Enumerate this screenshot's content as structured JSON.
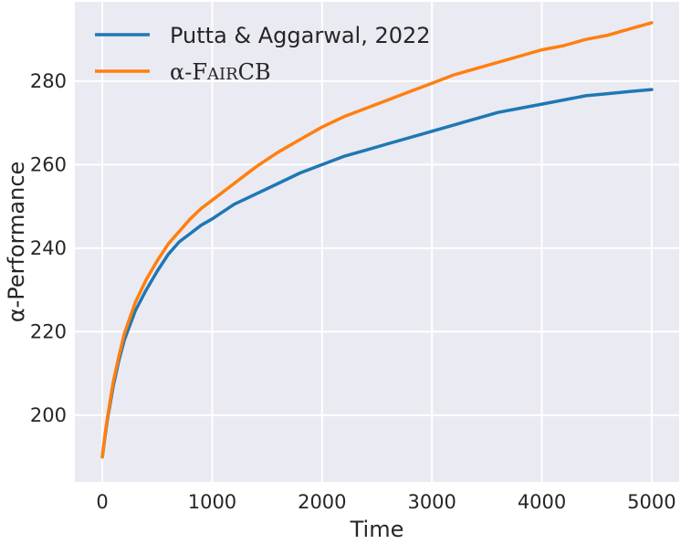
{
  "chart_data": {
    "type": "line",
    "xlabel": "Time",
    "ylabel": "α-Performance",
    "xlim": [
      -250,
      5250
    ],
    "ylim": [
      184,
      299
    ],
    "xticks": [
      0,
      1000,
      2000,
      3000,
      4000,
      5000
    ],
    "yticks": [
      200,
      220,
      240,
      260,
      280
    ],
    "grid": true,
    "legend_position": "top-left",
    "background": "#eaeaf2",
    "series": [
      {
        "name": "Putta & Aggarwal, 2022",
        "color": "#1f77b4",
        "x": [
          0,
          25,
          50,
          100,
          150,
          200,
          300,
          400,
          500,
          600,
          700,
          800,
          900,
          1000,
          1200,
          1400,
          1600,
          1800,
          2000,
          2200,
          2400,
          2600,
          2800,
          3000,
          3200,
          3400,
          3600,
          3800,
          4000,
          4200,
          4400,
          4600,
          4800,
          5000
        ],
        "values": [
          190,
          195,
          199.5,
          207,
          213,
          218,
          225,
          230,
          234.5,
          238.5,
          241.5,
          243.5,
          245.5,
          247,
          250.5,
          253,
          255.5,
          258,
          260,
          262,
          263.5,
          265,
          266.5,
          268,
          269.5,
          271,
          272.5,
          273.5,
          274.5,
          275.5,
          276.5,
          277,
          277.5,
          278
        ]
      },
      {
        "name": "α-FairCB",
        "color": "#ff7f0e",
        "x": [
          0,
          25,
          50,
          100,
          150,
          200,
          300,
          400,
          500,
          600,
          700,
          800,
          900,
          1000,
          1200,
          1400,
          1600,
          1800,
          2000,
          2200,
          2400,
          2600,
          2800,
          3000,
          3200,
          3400,
          3600,
          3800,
          4000,
          4200,
          4400,
          4600,
          4800,
          5000
        ],
        "values": [
          190,
          195.5,
          200,
          208,
          214,
          219.5,
          227,
          232.5,
          237,
          241,
          244,
          247,
          249.5,
          251.5,
          255.5,
          259.5,
          263,
          266,
          269,
          271.5,
          273.5,
          275.5,
          277.5,
          279.5,
          281.5,
          283,
          284.5,
          286,
          287.5,
          288.5,
          290,
          291,
          292.5,
          294
        ]
      }
    ],
    "legend": {
      "entries": [
        {
          "text": "Putta & Aggarwal, 2022",
          "color": "#1f77b4"
        },
        {
          "prefix": "α-F",
          "small_caps": "AIR",
          "suffix": "CB",
          "color": "#ff7f0e"
        }
      ]
    }
  }
}
